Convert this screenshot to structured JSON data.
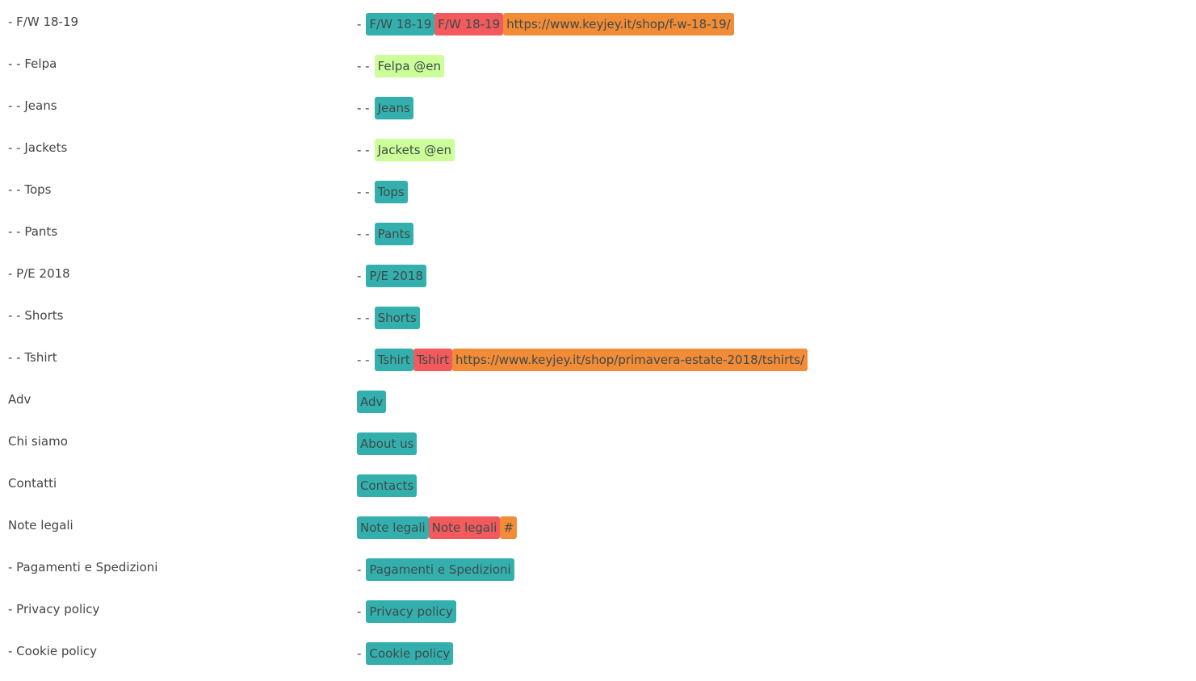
{
  "colors": {
    "teal": "#33b0ae",
    "red": "#f25a5d",
    "orange": "#f28c37",
    "lime": "#ccff99",
    "text": "#444444"
  },
  "rows": [
    {
      "source": "- F/W 18-19",
      "prefix": "-",
      "tags": [
        {
          "text": "F/W 18-19",
          "color": "teal"
        },
        {
          "text": "F/W 18-19",
          "color": "red"
        },
        {
          "text": "https://www.keyjey.it/shop/f-w-18-19/",
          "color": "orange"
        }
      ]
    },
    {
      "source": "- - Felpa",
      "prefix": "- -",
      "tags": [
        {
          "text": "Felpa @en",
          "color": "lime"
        }
      ]
    },
    {
      "source": "- - Jeans",
      "prefix": "- -",
      "tags": [
        {
          "text": "Jeans",
          "color": "teal"
        }
      ]
    },
    {
      "source": "- - Jackets",
      "prefix": "- -",
      "tags": [
        {
          "text": "Jackets @en",
          "color": "lime"
        }
      ]
    },
    {
      "source": "- - Tops",
      "prefix": "- -",
      "tags": [
        {
          "text": "Tops",
          "color": "teal"
        }
      ]
    },
    {
      "source": "- - Pants",
      "prefix": "- -",
      "tags": [
        {
          "text": "Pants",
          "color": "teal"
        }
      ]
    },
    {
      "source": "- P/E 2018",
      "prefix": "-",
      "tags": [
        {
          "text": "P/E 2018",
          "color": "teal"
        }
      ]
    },
    {
      "source": "- - Shorts",
      "prefix": "- -",
      "tags": [
        {
          "text": "Shorts",
          "color": "teal"
        }
      ]
    },
    {
      "source": "- - Tshirt",
      "prefix": "- -",
      "tags": [
        {
          "text": "Tshirt",
          "color": "teal"
        },
        {
          "text": "Tshirt",
          "color": "red"
        },
        {
          "text": "https://www.keyjey.it/shop/primavera-estate-2018/tshirts/",
          "color": "orange"
        }
      ]
    },
    {
      "source": "Adv",
      "prefix": "",
      "tags": [
        {
          "text": "Adv",
          "color": "teal"
        }
      ]
    },
    {
      "source": "Chi siamo",
      "prefix": "",
      "tags": [
        {
          "text": "About us",
          "color": "teal"
        }
      ]
    },
    {
      "source": "Contatti",
      "prefix": "",
      "tags": [
        {
          "text": "Contacts",
          "color": "teal"
        }
      ]
    },
    {
      "source": "Note legali",
      "prefix": "",
      "tags": [
        {
          "text": "Note legali",
          "color": "teal"
        },
        {
          "text": "Note legali",
          "color": "red"
        },
        {
          "text": "#",
          "color": "orange"
        }
      ]
    },
    {
      "source": "- Pagamenti e Spedizioni",
      "prefix": "-",
      "tags": [
        {
          "text": "Pagamenti e Spedizioni",
          "color": "teal"
        }
      ]
    },
    {
      "source": "- Privacy policy",
      "prefix": "-",
      "tags": [
        {
          "text": "Privacy policy",
          "color": "teal"
        }
      ]
    },
    {
      "source": "- Cookie policy",
      "prefix": "-",
      "tags": [
        {
          "text": "Cookie policy",
          "color": "teal"
        }
      ]
    }
  ]
}
